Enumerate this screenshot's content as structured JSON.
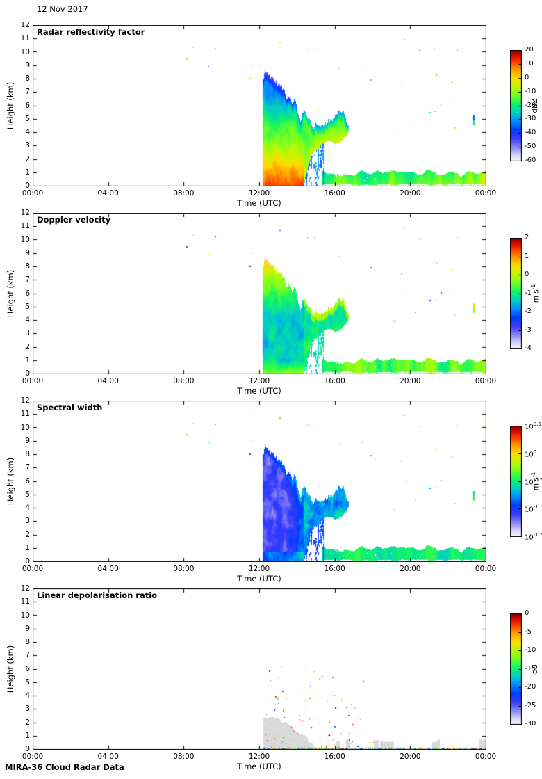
{
  "figure": {
    "date_label": "12 Nov 2017",
    "footer_label": "MIRA-36 Cloud Radar Data",
    "background": "#ffffff"
  },
  "axes": {
    "x": {
      "label": "Time (UTC)",
      "tick_hours": [
        0,
        4,
        8,
        12,
        16,
        20,
        24
      ],
      "tick_labels": [
        "00:00",
        "04:00",
        "08:00",
        "12:00",
        "16:00",
        "20:00",
        "00:00"
      ],
      "range_hours": [
        0,
        24
      ]
    },
    "y": {
      "label": "Height (km)",
      "ticks": [
        0,
        1,
        2,
        3,
        4,
        5,
        6,
        7,
        8,
        9,
        10,
        11,
        12
      ],
      "range_km": [
        0,
        12
      ]
    }
  },
  "chart_data": {
    "type": "heatmap",
    "panels": [
      {
        "id": "reflectivity",
        "title": "Radar reflectivity factor",
        "colorbar": {
          "unit": "dBZ",
          "unit_base": "dBZ",
          "unit_sup": "",
          "scale": "linear",
          "min": -60,
          "max": 20,
          "ticks": [
            20,
            10,
            0,
            -10,
            -20,
            -30,
            -40,
            -50,
            -60
          ],
          "tick_labels": [
            "20",
            "10",
            "0",
            "-10",
            "-20",
            "-30",
            "-40",
            "-50",
            "-60"
          ]
        }
      },
      {
        "id": "doppler-velocity",
        "title": "Doppler velocity",
        "colorbar": {
          "unit": "m s⁻¹",
          "unit_base": "m s",
          "unit_sup": "-1",
          "scale": "linear",
          "min": -4,
          "max": 2,
          "ticks": [
            2,
            1,
            0,
            -1,
            -2,
            -3,
            -4
          ],
          "tick_labels": [
            "2",
            "1",
            "0",
            "-1",
            "-2",
            "-3",
            "-4"
          ]
        }
      },
      {
        "id": "spectral-width",
        "title": "Spectral width",
        "colorbar": {
          "unit": "m s⁻¹",
          "unit_base": "m s",
          "unit_sup": "-1",
          "scale": "log10",
          "min": -1.5,
          "max": 0.5,
          "ticks": [
            0.5,
            0,
            -0.5,
            -1,
            -1.5
          ],
          "tick_base": "10",
          "tick_exponents": [
            "0.5",
            "0",
            "-0.5",
            "-1",
            "-1.5"
          ],
          "tick_labels": [
            "10^0.5",
            "10^0",
            "10^-0.5",
            "10^-1",
            "10^-1.5"
          ]
        }
      },
      {
        "id": "ldr",
        "title": "Linear depolarisation ratio",
        "colorbar": {
          "unit": "dB",
          "unit_base": "dB",
          "unit_sup": "",
          "scale": "linear",
          "min": -30,
          "max": 0,
          "ticks": [
            0,
            -5,
            -10,
            -15,
            -20,
            -25,
            -30
          ],
          "tick_labels": [
            "0",
            "-5",
            "-10",
            "-15",
            "-20",
            "-25",
            "-30"
          ]
        }
      }
    ],
    "colormap_stops": [
      [
        0.0,
        "#f6f6ff"
      ],
      [
        0.05,
        "#d8d8fa"
      ],
      [
        0.12,
        "#8c8cf5"
      ],
      [
        0.2,
        "#3c3cff"
      ],
      [
        0.28,
        "#003cff"
      ],
      [
        0.36,
        "#008cff"
      ],
      [
        0.44,
        "#00d2be"
      ],
      [
        0.52,
        "#14f564"
      ],
      [
        0.6,
        "#78ff1e"
      ],
      [
        0.68,
        "#c8f500"
      ],
      [
        0.75,
        "#ffdc00"
      ],
      [
        0.82,
        "#ffa000"
      ],
      [
        0.89,
        "#ff4600"
      ],
      [
        0.95,
        "#dc0a00"
      ],
      [
        1.0,
        "#820000"
      ]
    ],
    "event": {
      "description": "Deep cloud/precipitation from ~12:10 UTC, tops ~8.5 km, lowering and breaking up by ~16:45 UTC; shallow layer below ~1 km persists until 00:00",
      "main_cloud": {
        "t_range": [
          12.17,
          16.72
        ],
        "top_km": [
          [
            12.17,
            7.6
          ],
          [
            12.28,
            8.4
          ],
          [
            12.45,
            8.5
          ],
          [
            12.62,
            8.35
          ],
          [
            12.8,
            7.95
          ],
          [
            13.0,
            7.6
          ],
          [
            13.2,
            7.15
          ],
          [
            13.45,
            6.7
          ],
          [
            13.7,
            6.4
          ],
          [
            13.95,
            6.25
          ],
          [
            14.05,
            5.6
          ],
          [
            14.15,
            5.1
          ],
          [
            14.35,
            5.45
          ],
          [
            14.55,
            5.05
          ],
          [
            14.8,
            4.65
          ],
          [
            15.1,
            4.45
          ],
          [
            15.35,
            4.35
          ],
          [
            15.6,
            4.95
          ],
          [
            15.95,
            5.25
          ],
          [
            16.3,
            5.6
          ],
          [
            16.55,
            5.25
          ],
          [
            16.72,
            4.5
          ]
        ],
        "base_km": [
          [
            12.17,
            0
          ],
          [
            14.33,
            0
          ],
          [
            14.45,
            0.9
          ],
          [
            14.65,
            2.0
          ],
          [
            14.9,
            2.6
          ],
          [
            15.2,
            3.05
          ],
          [
            15.55,
            3.3
          ],
          [
            16.0,
            3.2
          ],
          [
            16.3,
            3.45
          ],
          [
            16.55,
            3.75
          ],
          [
            16.72,
            4.05
          ]
        ]
      },
      "virga_zone": {
        "t_range": [
          14.33,
          15.4
        ]
      },
      "low_layer": {
        "t_range": [
          15.28,
          24
        ],
        "mean_top_km": 0.95,
        "top_noise_km": 0.45
      },
      "ldr_gray_t_range": [
        12.2,
        14.68
      ],
      "ldr_gray_top_km": [
        [
          12.2,
          2.3
        ],
        [
          12.55,
          2.45
        ],
        [
          12.95,
          2.3
        ],
        [
          13.3,
          2.0
        ],
        [
          13.6,
          1.85
        ],
        [
          13.9,
          1.35
        ],
        [
          14.25,
          1.15
        ],
        [
          14.5,
          1.0
        ],
        [
          14.68,
          0.55
        ]
      ],
      "isolated_echo": {
        "t": 23.27,
        "h_km": [
          4.55,
          5.3
        ]
      }
    },
    "value_model": {
      "reflectivity": {
        "surface_dbz": 10,
        "lapse_dbz_per_km": -5.8,
        "noise_dbz": 13,
        "cloud_top_edge_drop": -12,
        "late_cloud_dbz": [
          -5,
          -18
        ],
        "virga_dbz": [
          -24,
          -40
        ],
        "low_layer_dbz": [
          -27,
          8
        ]
      },
      "velocity": {
        "cloud_ms": -1.35,
        "noise_ms": 1.1,
        "upper_boost_per_km": 0.55,
        "upper_start_km": 4.5,
        "near_surface_boost_ms": 1.1,
        "late_cloud_ms": -1.0,
        "low_layer_ms": [
          -1.55,
          0.45
        ]
      },
      "spectral_width": {
        "cloud_log10": -1.12,
        "noise_log10": 0.4,
        "late_cloud_log10": -0.72,
        "low_layer_log10": [
          -0.72,
          -0.28
        ],
        "top_edge_boost": 0.2
      },
      "ldr": {
        "gray_color": "#d4d4d4",
        "speck_count": 95,
        "speck_region_t": [
          12.3,
          17.5
        ],
        "speck_region_km": [
          0.2,
          6.5
        ]
      }
    }
  }
}
